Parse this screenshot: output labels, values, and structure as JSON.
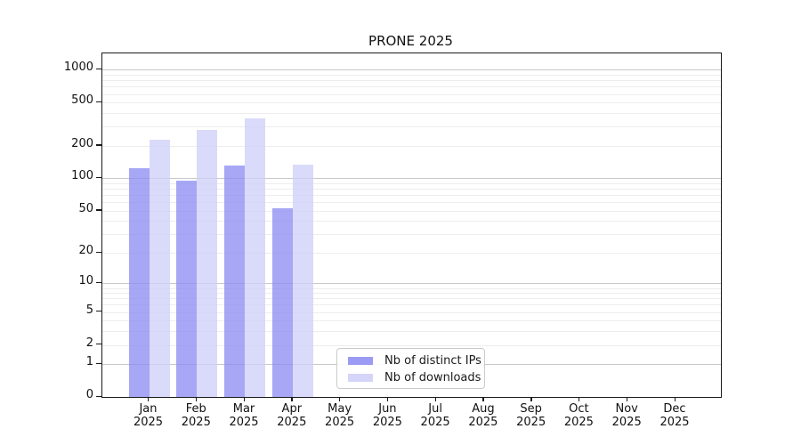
{
  "chart_data": {
    "type": "bar",
    "title": "PRONE 2025",
    "categories": [
      "Jan 2025",
      "Feb 2025",
      "Mar 2025",
      "Apr 2025",
      "May 2025",
      "Jun 2025",
      "Jul 2025",
      "Aug 2025",
      "Sep 2025",
      "Oct 2025",
      "Nov 2025",
      "Dec 2025"
    ],
    "series": [
      {
        "name": "Nb of distinct IPs",
        "color": "#8a8af3",
        "values": [
          125,
          95,
          131,
          53,
          null,
          null,
          null,
          null,
          null,
          null,
          null,
          null
        ]
      },
      {
        "name": "Nb of downloads",
        "color": "#cecef8",
        "values": [
          228,
          281,
          361,
          134,
          null,
          null,
          null,
          null,
          null,
          null,
          null,
          null
        ]
      }
    ],
    "y_axis": {
      "scale": "log1p",
      "ticks": [
        0,
        1,
        2,
        5,
        10,
        20,
        50,
        100,
        200,
        500,
        1000
      ],
      "range": [
        0,
        1412
      ]
    },
    "grid": true,
    "legend_position": "lower center",
    "colors": {
      "grid_major": "#c9c9c9",
      "grid_minor": "#ededed",
      "axis": "#1a1a1a",
      "text": "#111111"
    }
  }
}
